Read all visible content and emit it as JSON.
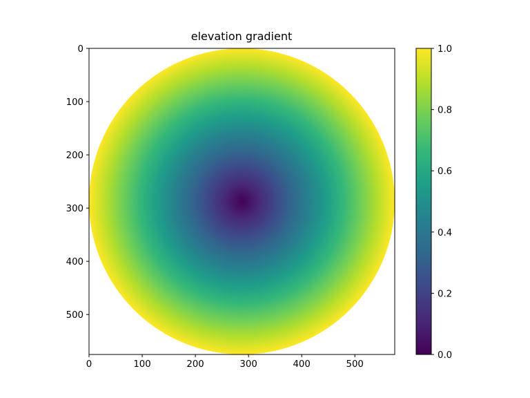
{
  "chart_data": {
    "type": "heatmap",
    "title": "elevation gradient",
    "xlabel": "",
    "ylabel": "",
    "description_of_field": "radial gradient, value = normalized distance from center, masked outside circle",
    "x_range": [
      0,
      575
    ],
    "y_range": [
      575,
      0
    ],
    "center": [
      287.5,
      287.5
    ],
    "radius": 287.5,
    "value_range": [
      0.0,
      1.0
    ],
    "colormap": "viridis",
    "colormap_stops": [
      "#440154",
      "#482878",
      "#3e4989",
      "#31688e",
      "#26828e",
      "#1f9e89",
      "#35b779",
      "#6ece58",
      "#b5de2b",
      "#fde725"
    ],
    "x_ticks": [
      "0",
      "100",
      "200",
      "300",
      "400",
      "500"
    ],
    "x_tick_values": [
      0,
      100,
      200,
      300,
      400,
      500
    ],
    "y_ticks": [
      "0",
      "100",
      "200",
      "300",
      "400",
      "500"
    ],
    "y_tick_values": [
      0,
      100,
      200,
      300,
      400,
      500
    ],
    "colorbar_ticks": [
      "0.0",
      "0.2",
      "0.4",
      "0.6",
      "0.8",
      "1.0"
    ],
    "colorbar_tick_values": [
      0.0,
      0.2,
      0.4,
      0.6,
      0.8,
      1.0
    ],
    "grid": false,
    "legend": "none"
  }
}
